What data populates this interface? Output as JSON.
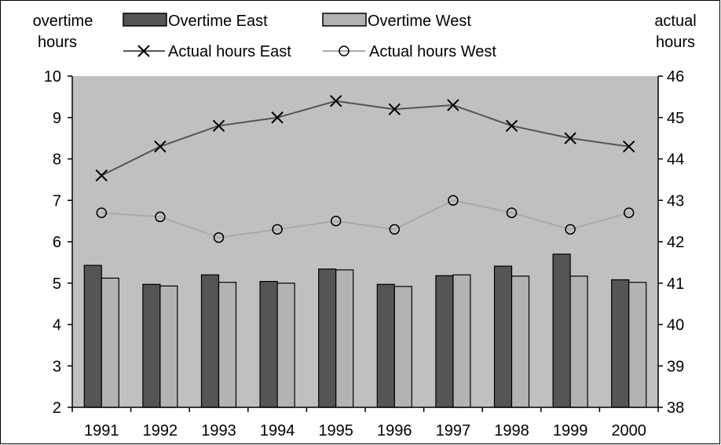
{
  "chart_data": {
    "type": "bar",
    "categories": [
      "1991",
      "1992",
      "1993",
      "1994",
      "1995",
      "1996",
      "1997",
      "1998",
      "1999",
      "2000"
    ],
    "left_axis": {
      "label_lines": [
        "overtime",
        "hours"
      ],
      "range": [
        2,
        10
      ],
      "ticks": [
        "2",
        "3",
        "4",
        "5",
        "6",
        "7",
        "8",
        "9",
        "10"
      ]
    },
    "right_axis": {
      "label_lines": [
        "actual",
        "hours"
      ],
      "range": [
        38,
        46
      ],
      "ticks": [
        "38",
        "39",
        "40",
        "41",
        "42",
        "43",
        "44",
        "45",
        "46"
      ]
    },
    "series": [
      {
        "name": "Overtime East",
        "kind": "bar",
        "axis": "left",
        "color": "#555555",
        "values": [
          5.43,
          4.97,
          5.2,
          5.04,
          5.34,
          4.97,
          5.18,
          5.41,
          5.7,
          5.08
        ]
      },
      {
        "name": "Overtime West",
        "kind": "bar",
        "axis": "left",
        "color": "#b3b3b3",
        "values": [
          5.12,
          4.93,
          5.02,
          5.0,
          5.32,
          4.92,
          5.2,
          5.17,
          5.17,
          5.02
        ]
      },
      {
        "name": "Actual hours East",
        "kind": "line",
        "marker": "x",
        "axis": "right",
        "color": "#555555",
        "values": [
          43.6,
          44.3,
          44.8,
          45.0,
          45.4,
          45.2,
          45.3,
          44.8,
          44.5,
          44.3
        ]
      },
      {
        "name": "Actual hours West",
        "kind": "line",
        "marker": "circle",
        "axis": "right",
        "color": "#aaaaaa",
        "values": [
          42.7,
          42.6,
          42.1,
          42.3,
          42.5,
          42.3,
          43.0,
          42.7,
          42.3,
          42.7
        ]
      }
    ],
    "plot_background": "#c0c0c0",
    "grid": false,
    "legend_position": "top"
  }
}
